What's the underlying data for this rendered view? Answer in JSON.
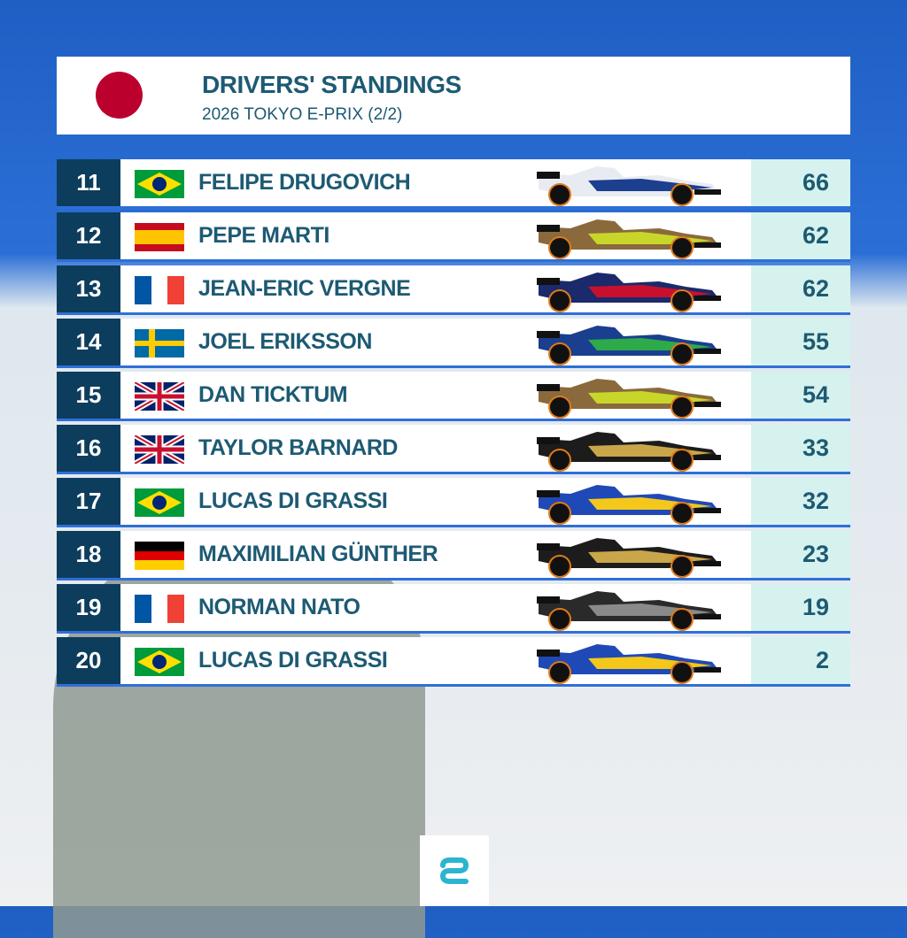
{
  "header": {
    "title": "DRIVERS' STANDINGS",
    "subtitle": "2026 TOKYO E-PRIX (2/2)"
  },
  "table": {
    "rows": [
      [
        "11",
        "FELIPE DRUGOVICH",
        "66"
      ],
      [
        "12",
        "PEPE MARTI",
        "62"
      ],
      [
        "13",
        "JEAN-ERIC VERGNE",
        "62"
      ],
      [
        "14",
        "JOEL ERIKSSON",
        "55"
      ],
      [
        "15",
        "DAN TICKTUM",
        "54"
      ],
      [
        "16",
        "TAYLOR BARNARD",
        "33"
      ],
      [
        "17",
        "LUCAS DI GRASSI",
        "32"
      ],
      [
        "18",
        "MAXIMILIAN GÜNTHER",
        "23"
      ],
      [
        "19",
        "NORMAN NATO",
        "19"
      ],
      [
        "20",
        "LUCAS DI GRASSI",
        "2"
      ]
    ]
  }
}
